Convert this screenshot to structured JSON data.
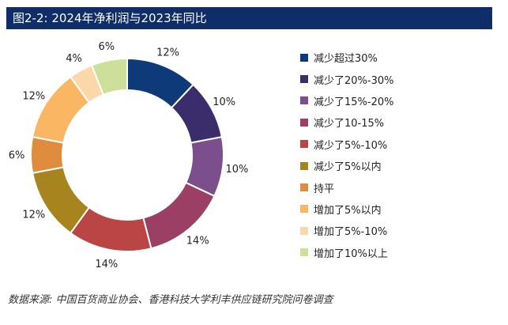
{
  "title": "图2-2: 2024年净利润与2023年同比",
  "source": "数据来源: 中国百货商业协会、香港科技大学利丰供应链研究院问卷调查",
  "chart_data": {
    "type": "pie",
    "donut": true,
    "legend_position": "right",
    "categories": [
      "减少超过30%",
      "减少了20%-30%",
      "减少了15%-20%",
      "减少了10-15%",
      "减少了5%-10%",
      "减少了5%以内",
      "持平",
      "增加了5%以内",
      "增加了5%-10%",
      "增加了10%以上"
    ],
    "values": [
      12,
      10,
      10,
      14,
      14,
      12,
      6,
      12,
      4,
      6
    ],
    "labels": [
      "12%",
      "10%",
      "10%",
      "14%",
      "14%",
      "12%",
      "6%",
      "12%",
      "4%",
      "6%"
    ],
    "colors": [
      "#0f3a7a",
      "#3b2d6b",
      "#7a4f8c",
      "#9b3f64",
      "#b94545",
      "#a8841f",
      "#e08c3f",
      "#f9b663",
      "#fbd7aa",
      "#cbe19a"
    ]
  }
}
